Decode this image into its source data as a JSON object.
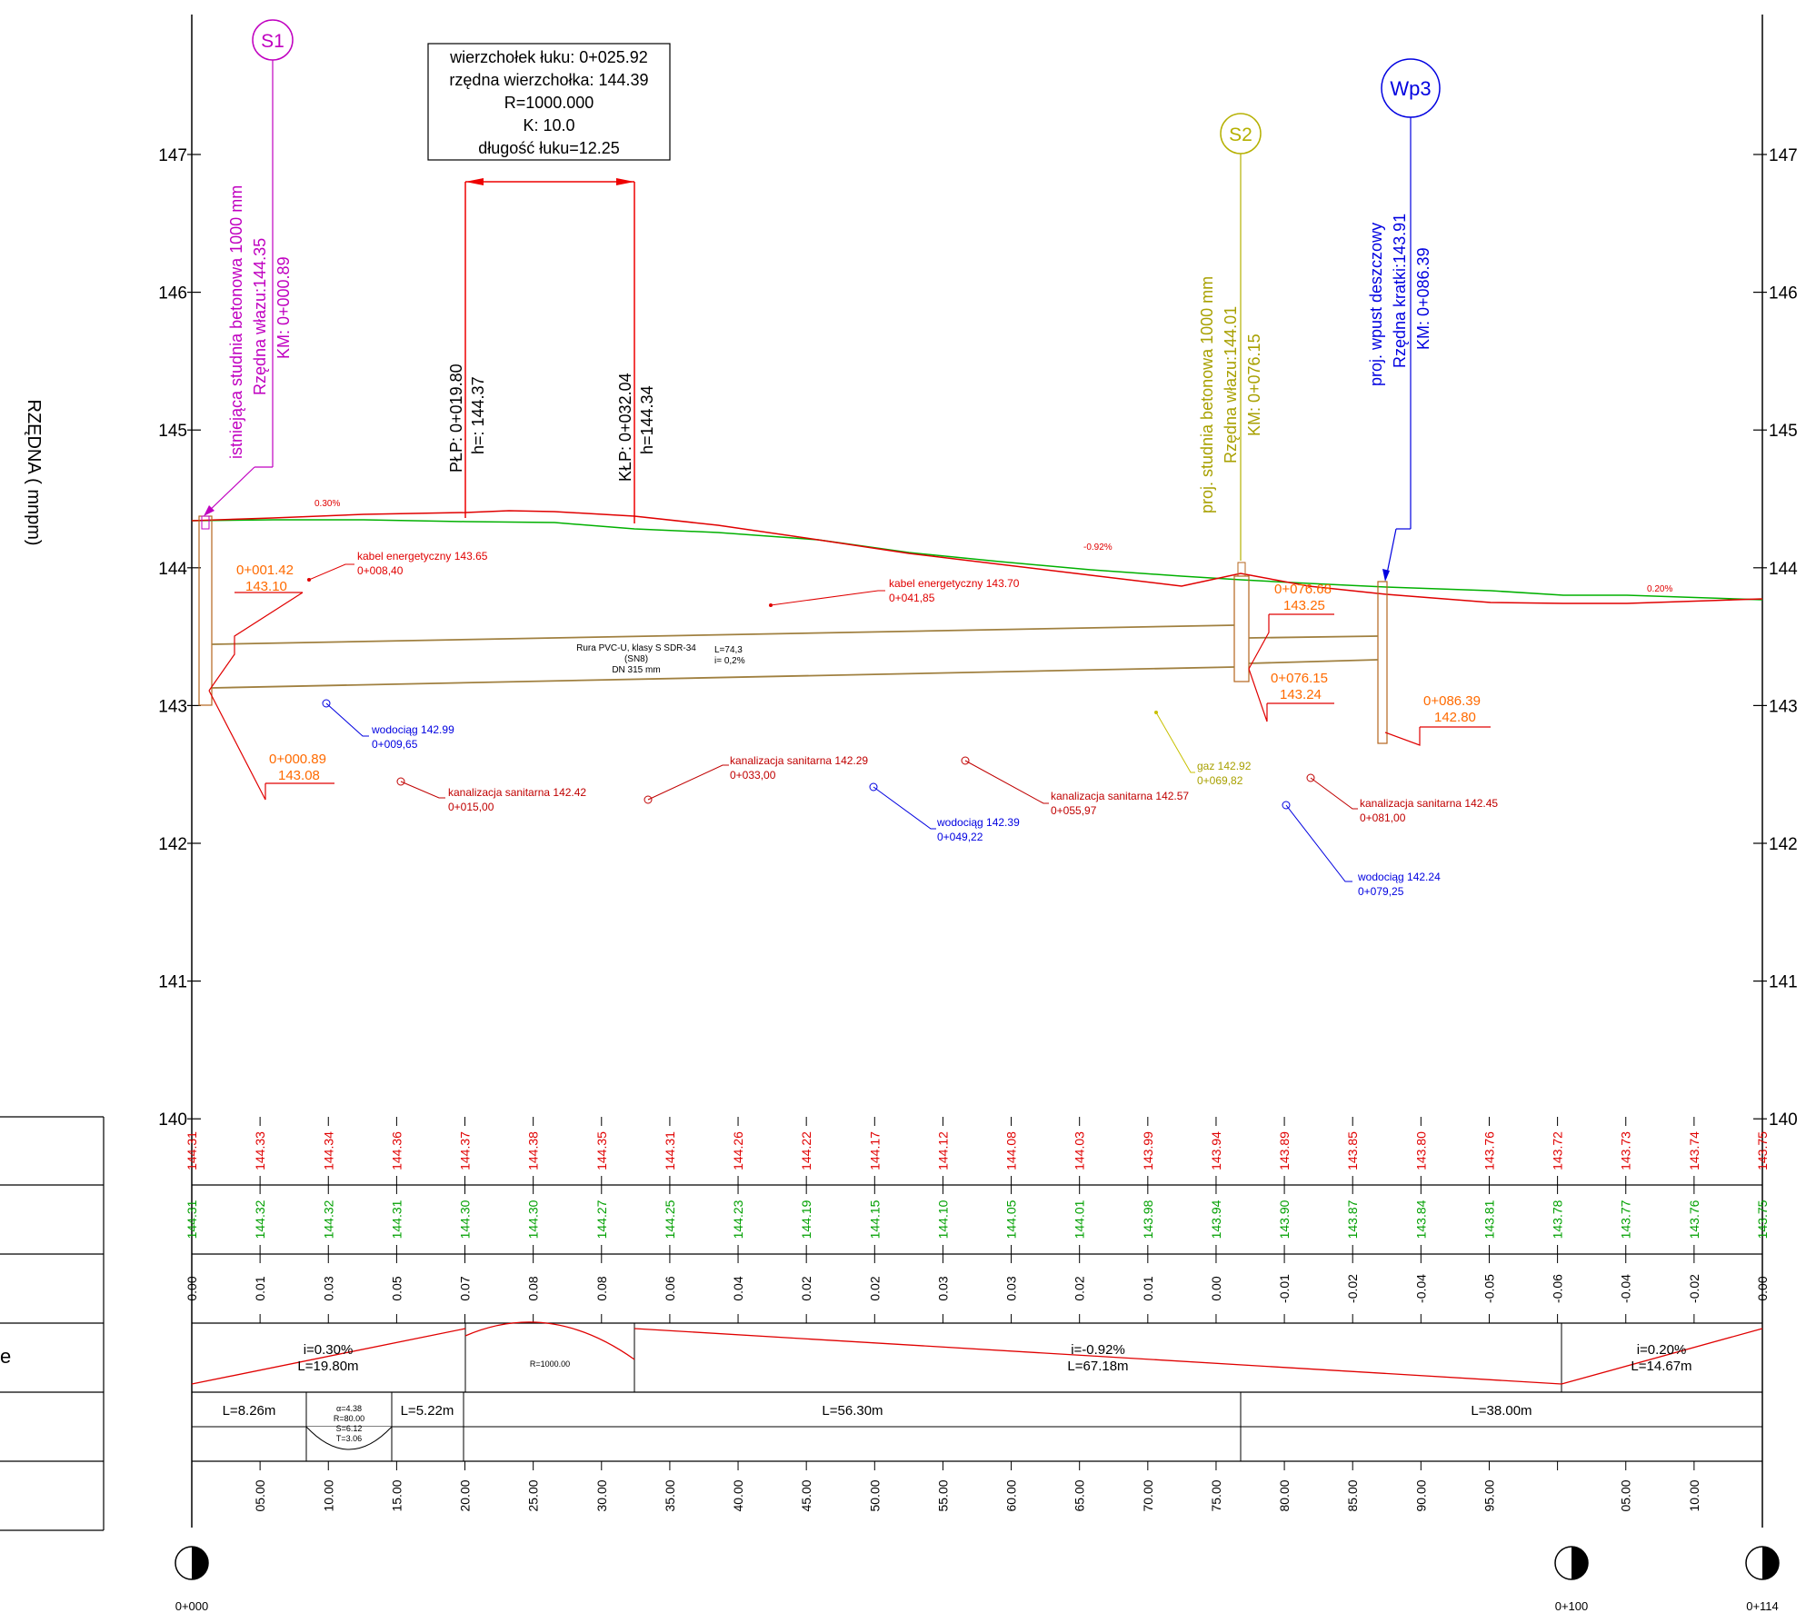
{
  "axis": {
    "title": "RZĘDNA   ( mnpm)",
    "elevations": [
      "147",
      "146",
      "145",
      "144",
      "143",
      "142",
      "141",
      "140"
    ]
  },
  "markers": {
    "s1": "S1",
    "s2": "S2",
    "wp3": "Wp3"
  },
  "callouts": {
    "s1": [
      "istniejąca studnia betonowa 1000 mm",
      "Rzędna włazu:144.35",
      "KM: 0+000.89"
    ],
    "s2": [
      "proj. studnia betonowa 1000 mm",
      "Rzędna włazu:144.01",
      "KM: 0+076.15"
    ],
    "wp3": [
      "proj. wpust deszczowy",
      "Rzędna kratki:143.91",
      "KM: 0+086.39"
    ],
    "plp": [
      "PŁP: 0+019.80",
      "h=: 144.37"
    ],
    "klp": [
      "KŁP: 0+032.04",
      "h=144.34"
    ]
  },
  "vertex_box": [
    "wierzchołek łuku: 0+025.92",
    "rzędna wierzchołka: 144.39",
    "R=1000.000",
    "K: 10.0",
    "długość łuku=12.25"
  ],
  "slopes": {
    "s1": "0.30%",
    "s2": "-0.92%",
    "s3": "0.20%"
  },
  "pipe": {
    "line1": "Rura PVC-U, klasy S SDR-34",
    "line2": "(SN8)",
    "line3": "DN 315 mm",
    "len": "L=74,3",
    "slope": "i= 0,2%"
  },
  "inverts": [
    {
      "km": "0+001.42",
      "h": "143.10"
    },
    {
      "km": "0+000.89",
      "h": "143.08"
    },
    {
      "km": "0+076.68",
      "h": "143.25"
    },
    {
      "km": "0+076.15",
      "h": "143.24"
    },
    {
      "km": "0+086.39",
      "h": "142.80"
    }
  ],
  "utilities": [
    {
      "name": "kabel energetyczny 143.65",
      "km": "0+008,40"
    },
    {
      "name": "kabel energetyczny 143.70",
      "km": "0+041,85"
    },
    {
      "name": "wodociąg 142.99",
      "km": "0+009,65"
    },
    {
      "name": "kanalizacja sanitarna 142.42",
      "km": "0+015,00"
    },
    {
      "name": "kanalizacja sanitarna 142.29",
      "km": "0+033,00"
    },
    {
      "name": "wodociąg 142.39",
      "km": "0+049,22"
    },
    {
      "name": "kanalizacja sanitarna 142.57",
      "km": "0+055,97"
    },
    {
      "name": "gaz 142.92",
      "km": "0+069,82"
    },
    {
      "name": "kanalizacja sanitarna 142.45",
      "km": "0+081,00"
    },
    {
      "name": "wodociąg 142.24",
      "km": "0+079,25"
    }
  ],
  "table": {
    "row_project": [
      "144.31",
      "144.33",
      "144.34",
      "144.36",
      "144.37",
      "144.38",
      "144.35",
      "144.31",
      "144.26",
      "144.22",
      "144.17",
      "144.12",
      "144.08",
      "144.03",
      "143.99",
      "143.94",
      "143.89",
      "143.85",
      "143.80",
      "143.76",
      "143.72",
      "143.73",
      "143.74",
      "143.75"
    ],
    "row_terrain": [
      "144.31",
      "144.32",
      "144.32",
      "144.31",
      "144.30",
      "144.30",
      "144.27",
      "144.25",
      "144.23",
      "144.19",
      "144.15",
      "144.10",
      "144.05",
      "144.01",
      "143.98",
      "143.94",
      "143.90",
      "143.87",
      "143.84",
      "143.81",
      "143.78",
      "143.77",
      "143.76",
      "143.75"
    ],
    "row_diff": [
      "0.00",
      "0.01",
      "0.03",
      "0.05",
      "0.07",
      "0.08",
      "0.08",
      "0.06",
      "0.04",
      "0.02",
      "0.02",
      "0.03",
      "0.03",
      "0.02",
      "0.01",
      "0.00",
      "-0.01",
      "-0.02",
      "-0.04",
      "-0.05",
      "-0.06",
      "-0.04",
      "-0.02",
      "0.00"
    ],
    "grade": {
      "g1_i": "i=0.30%",
      "g1_l": "L=19.80m",
      "curve": "R=1000.00",
      "g2_i": "i=-0.92%",
      "g2_l": "L=67.18m",
      "g3_i": "i=0.20%",
      "g3_l": "L=14.67m"
    },
    "plan": {
      "p1": "L=8.26m",
      "arc": [
        "α=4.38",
        "R=80.00",
        "S=6.12",
        "T=3.06"
      ],
      "p2": "L=5.22m",
      "p3": "L=56.30m",
      "p4": "L=38.00m"
    },
    "row_dist": [
      "05.00",
      "10.00",
      "15.00",
      "20.00",
      "25.00",
      "30.00",
      "35.00",
      "40.00",
      "45.00",
      "50.00",
      "55.00",
      "60.00",
      "65.00",
      "70.00",
      "75.00",
      "80.00",
      "85.00",
      "90.00",
      "95.00",
      "",
      "05.00",
      "10.00"
    ]
  },
  "row_headings": [
    "",
    "",
    "",
    "e",
    "",
    ""
  ],
  "chainage": [
    "0+000",
    "0+100",
    "0+114"
  ]
}
